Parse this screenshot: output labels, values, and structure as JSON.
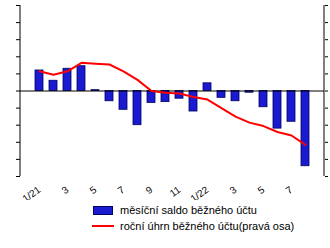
{
  "chart_data": {
    "type": "bar",
    "categories": [
      "1/21",
      null,
      "3",
      null,
      "5",
      null,
      "7",
      null,
      "9",
      null,
      "11",
      null,
      "1/22",
      null,
      "3",
      null,
      "5",
      null,
      "7",
      null
    ],
    "series": [
      {
        "name": "měsíční saldo běžného účtu",
        "type": "bar",
        "color": "#1a1ad0",
        "values": [
          12,
          6,
          13,
          14.5,
          0.5,
          -6,
          -11,
          -20,
          -7,
          -6.5,
          -4.5,
          -12,
          4.5,
          -4,
          -6,
          -1,
          -9.5,
          -22,
          -18,
          -44
        ]
      },
      {
        "name": "roční úhrn běžného účtu(pravá osa)",
        "type": "line",
        "axis": "y2",
        "color": "#ff0000",
        "values": [
          115,
          95,
          115,
          165,
          160,
          155,
          115,
          65,
          0,
          -10,
          -15,
          -35,
          -50,
          -100,
          -150,
          -185,
          -205,
          -240,
          -260,
          -315
        ]
      }
    ],
    "ylim": [
      -50,
      50
    ],
    "yticks": [
      -50,
      -40,
      -30,
      -20,
      -10,
      0,
      10,
      20,
      30,
      40,
      50
    ],
    "y2lim": [
      -500,
      500
    ],
    "y2ticks": [
      -500,
      -400,
      -300,
      -200,
      -100,
      0,
      100,
      200,
      300,
      400,
      500
    ],
    "tick_labels": "x",
    "grid": false,
    "legend": "bottom"
  }
}
